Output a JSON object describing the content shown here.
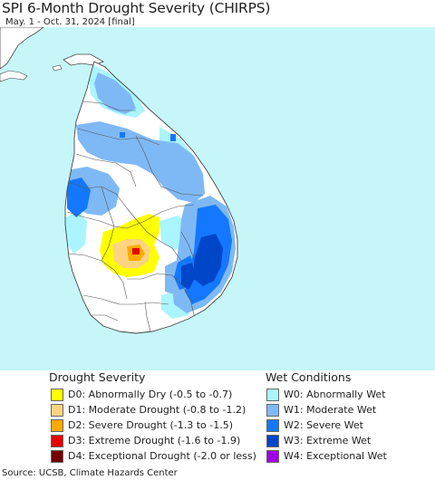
{
  "title": "SPI 6-Month Drought Severity (CHIRPS)",
  "subtitle": "May. 1 - Oct. 31, 2024 [final]",
  "colors": {
    "sea": "#c6f6f8",
    "land": "#ffffff",
    "d0": "#ffff00",
    "d1": "#fcd37f",
    "d2": "#ffaa00",
    "d3": "#e60000",
    "d4": "#730000",
    "w0": "#aaf5ff",
    "w1": "#7fb9f5",
    "w2": "#1478ff",
    "w3": "#0046c8",
    "w4": "#a000e6"
  },
  "legend": {
    "drought_title": "Drought Severity",
    "wet_title": "Wet Conditions",
    "drought_items": [
      {
        "code": "D0",
        "label": "D0: Abnormally Dry (-0.5 to -0.7)",
        "color": "#ffff00"
      },
      {
        "code": "D1",
        "label": "D1: Moderate Drought (-0.8 to -1.2)",
        "color": "#fcd37f"
      },
      {
        "code": "D2",
        "label": "D2: Severe Drought (-1.3 to -1.5)",
        "color": "#ffaa00"
      },
      {
        "code": "D3",
        "label": "D3: Extreme Drought (-1.6 to -1.9)",
        "color": "#e60000"
      },
      {
        "code": "D4",
        "label": "D4: Exceptional Drought (-2.0 or less)",
        "color": "#730000"
      }
    ],
    "wet_items": [
      {
        "code": "W0",
        "label": "W0: Abnormally Wet",
        "color": "#aaf5ff"
      },
      {
        "code": "W1",
        "label": "W1: Moderate Wet",
        "color": "#7fb9f5"
      },
      {
        "code": "W2",
        "label": "W2: Severe Wet",
        "color": "#1478ff"
      },
      {
        "code": "W3",
        "label": "W3: Extreme Wet",
        "color": "#0046c8"
      },
      {
        "code": "W4",
        "label": "W4: Exceptional Wet",
        "color": "#a000e6"
      }
    ]
  },
  "source": "Source: UCSB, Climate Hazards Center"
}
